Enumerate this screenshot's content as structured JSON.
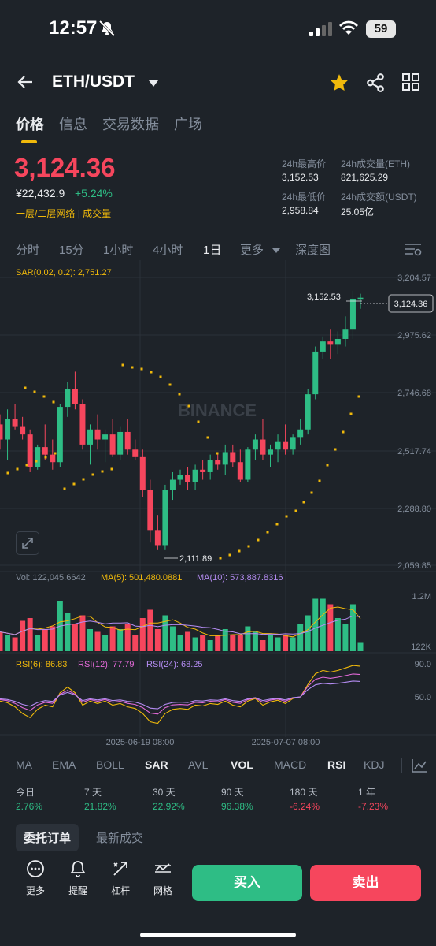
{
  "status_bar": {
    "time": "12:57",
    "battery": "59"
  },
  "header": {
    "pair": "ETH/USDT"
  },
  "tabs": [
    "价格",
    "信息",
    "交易数据",
    "广场"
  ],
  "price": {
    "last": "3,124.36",
    "cny": "¥22,432.9",
    "change": "+5.24%",
    "layer_link": "一层/二层网络",
    "volume_link": "成交量",
    "stats": [
      {
        "label": "24h最高价",
        "value": "3,152.53"
      },
      {
        "label": "24h成交量(ETH)",
        "value": "821,625.29"
      },
      {
        "label": "24h最低价",
        "value": "2,958.84"
      },
      {
        "label": "24h成交额(USDT)",
        "value": "25.05亿"
      }
    ]
  },
  "intervals": [
    "分时",
    "15分",
    "1小时",
    "4小时",
    "1日",
    "更多",
    "深度图"
  ],
  "chart": {
    "sar_label": "SAR(0.02, 0.2): 2,751.27",
    "watermark": "BINANCE",
    "y_ticks": [
      "3,204.57",
      "2,975.62",
      "2,746.68",
      "2,517.74",
      "2,288.80",
      "2,059.85"
    ],
    "current_price_tag": "3,124.36",
    "high_annotation": "3,152.53",
    "low_annotation": "2,111.89",
    "vol_label": "Vol: 122,045.6642",
    "ma5_label": "MA(5): 501,480.0881",
    "ma10_label": "MA(10): 573,887.8316",
    "vol_ticks": [
      "1.2M",
      "122K"
    ],
    "rsi6_label": "RSI(6): 86.83",
    "rsi12_label": "RSI(12): 77.79",
    "rsi24_label": "RSI(24): 68.25",
    "rsi_ticks": [
      "90.0",
      "50.0"
    ],
    "x_ticks": [
      "2025-06-19 08:00",
      "2025-07-07 08:00"
    ],
    "colors": {
      "up": "#2ebd85",
      "down": "#f6465d",
      "sar": "#f0b90b",
      "ma5": "#f0b90b",
      "ma10": "#b48cf2"
    }
  },
  "indicators": [
    "MA",
    "EMA",
    "BOLL",
    "SAR",
    "AVL",
    "VOL",
    "MACD",
    "RSI",
    "KDJ"
  ],
  "performance": [
    {
      "label": "今日",
      "value": "2.76%",
      "color": "#2ebd85"
    },
    {
      "label": "7 天",
      "value": "21.82%",
      "color": "#2ebd85"
    },
    {
      "label": "30 天",
      "value": "22.92%",
      "color": "#2ebd85"
    },
    {
      "label": "90 天",
      "value": "96.38%",
      "color": "#2ebd85"
    },
    {
      "label": "180 天",
      "value": "-6.24%",
      "color": "#f6465d"
    },
    {
      "label": "1 年",
      "value": "-7.23%",
      "color": "#f6465d"
    }
  ],
  "order_tabs": [
    "委托订单",
    "最新成交"
  ],
  "bottom_bar": {
    "more": "更多",
    "alert": "提醒",
    "leverage": "杠杆",
    "grid": "网格",
    "buy": "买入",
    "sell": "卖出"
  }
}
